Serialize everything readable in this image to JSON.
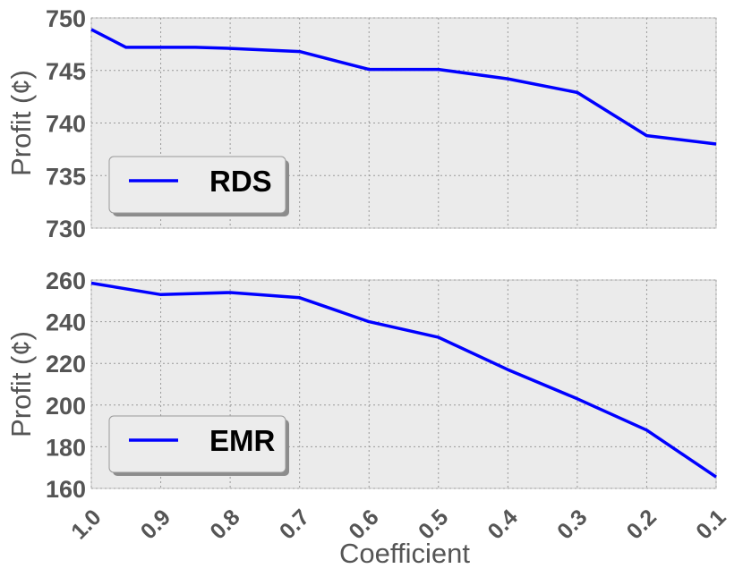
{
  "chart_data": [
    {
      "type": "line",
      "x": [
        1.0,
        0.95,
        0.9,
        0.85,
        0.8,
        0.7,
        0.6,
        0.5,
        0.4,
        0.3,
        0.2,
        0.1
      ],
      "x_ticks": [
        "1.0",
        "0.9",
        "0.8",
        "0.7",
        "0.6",
        "0.5",
        "0.4",
        "0.3",
        "0.2",
        "0.1"
      ],
      "x_tick_values": [
        1.0,
        0.9,
        0.8,
        0.7,
        0.6,
        0.5,
        0.4,
        0.3,
        0.2,
        0.1
      ],
      "xlim": [
        1.0,
        0.1
      ],
      "series": [
        {
          "name": "RDS",
          "values": [
            748.9,
            747.2,
            747.2,
            747.2,
            747.1,
            746.8,
            745.1,
            745.1,
            744.2,
            742.9,
            738.8,
            738.0
          ]
        }
      ],
      "y_ticks": [
        "730",
        "735",
        "740",
        "745",
        "750"
      ],
      "y_tick_values": [
        730,
        735,
        740,
        745,
        750
      ],
      "ylim": [
        730,
        750
      ],
      "ylabel": "Profit (¢)",
      "xlabel": "",
      "grid": true,
      "legend_position": "lower-left"
    },
    {
      "type": "line",
      "x": [
        1.0,
        0.9,
        0.8,
        0.7,
        0.6,
        0.5,
        0.4,
        0.3,
        0.2,
        0.1
      ],
      "x_ticks": [
        "1.0",
        "0.9",
        "0.8",
        "0.7",
        "0.6",
        "0.5",
        "0.4",
        "0.3",
        "0.2",
        "0.1"
      ],
      "x_tick_values": [
        1.0,
        0.9,
        0.8,
        0.7,
        0.6,
        0.5,
        0.4,
        0.3,
        0.2,
        0.1
      ],
      "xlim": [
        1.0,
        0.1
      ],
      "series": [
        {
          "name": "EMR",
          "values": [
            258.5,
            253.0,
            254.0,
            251.5,
            240.0,
            232.5,
            217.0,
            203.0,
            188.0,
            165.5
          ]
        }
      ],
      "y_ticks": [
        "160",
        "180",
        "200",
        "220",
        "240",
        "260"
      ],
      "y_tick_values": [
        160,
        180,
        200,
        220,
        240,
        260
      ],
      "ylim": [
        160,
        260
      ],
      "ylabel": "Profit (¢)",
      "xlabel": "Coefficient",
      "grid": true,
      "legend_position": "lower-left"
    }
  ],
  "colors": {
    "line": "#0000ff",
    "plot_background": "#ebebeb",
    "grid": "#9a9a9a",
    "text": "#555555"
  }
}
